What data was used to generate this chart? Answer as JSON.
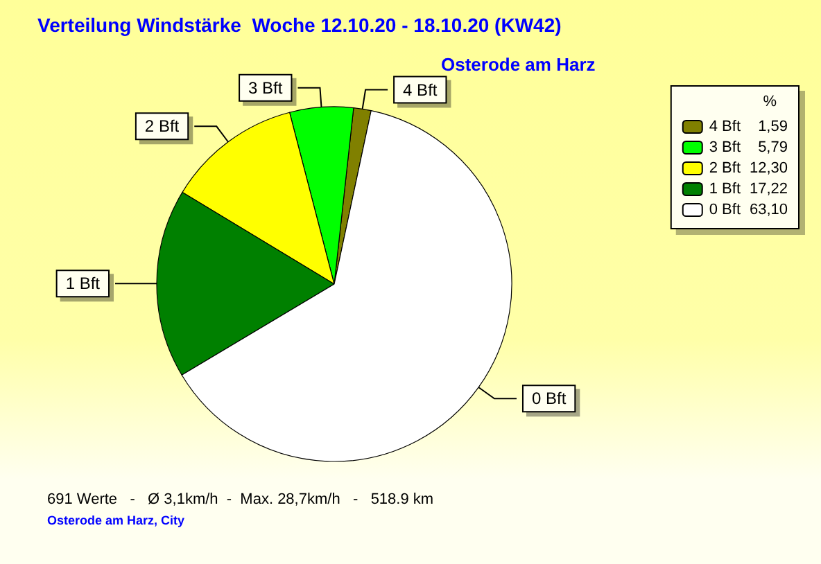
{
  "chart_data": {
    "type": "pie",
    "title": "Verteilung Windstärke  Woche 12.10.20 - 18.10.20 (KW42)",
    "subtitle": "Osterode am Harz",
    "legend_title": "%",
    "legend": "top right",
    "categories": [
      "4 Bft",
      "3 Bft",
      "2 Bft",
      "1 Bft",
      "0 Bft"
    ],
    "values": [
      1.59,
      5.79,
      12.3,
      17.22,
      63.1
    ],
    "value_labels": [
      "1,59",
      "5,79",
      "12,30",
      "17,22",
      "63,10"
    ],
    "colors": [
      "#808000",
      "#00ff00",
      "#ffff00",
      "#008000",
      "#ffffff"
    ],
    "annotations": [
      "691 Werte   -   Ø 3,1km/h  -  Max. 28,7km/h   -   518.9 km",
      "Osterode am Harz, City"
    ]
  }
}
